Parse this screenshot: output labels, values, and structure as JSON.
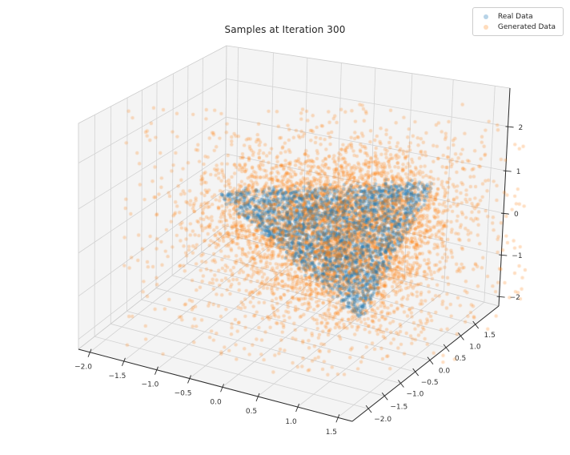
{
  "figure": {
    "title": "Samples at Iteration 300",
    "background_color": "#ffffff"
  },
  "legend": {
    "position": "upper right",
    "entries": [
      {
        "label": "Real Data",
        "series_color": "#1f77b4",
        "marker_color_on_white": "#b7d3e7"
      },
      {
        "label": "Generated Data",
        "series_color": "#ff7f0e",
        "marker_color_on_white": "#ffdcbc"
      }
    ]
  },
  "chart_data": {
    "type": "scatter",
    "projection": "3d",
    "title": "Samples at Iteration 300",
    "grid": true,
    "legend_position": "upper right",
    "axes": {
      "x": {
        "tick_labels": [
          "−2.0",
          "−1.5",
          "−1.0",
          "−0.5",
          "0.0",
          "0.5",
          "1.0",
          "1.5"
        ],
        "ticks": [
          -2.0,
          -1.5,
          -1.0,
          -0.5,
          0.0,
          0.5,
          1.0,
          1.5
        ],
        "range_approx": [
          -2.2,
          1.7
        ],
        "axis_label": ""
      },
      "y": {
        "tick_labels": [
          "−2.0",
          "−1.5",
          "−1.0",
          "−0.5",
          "0.0",
          "0.5",
          "1.0",
          "1.5"
        ],
        "ticks": [
          -2.0,
          -1.5,
          -1.0,
          -0.5,
          0.0,
          0.5,
          1.0,
          1.5
        ],
        "range_approx": [
          -2.2,
          1.7
        ],
        "axis_label": ""
      },
      "z": {
        "tick_labels": [
          "2",
          "1",
          "0",
          "−1",
          "−2"
        ],
        "ticks": [
          2,
          1,
          0,
          -1,
          -2
        ],
        "range_approx": [
          -2.3,
          2.9
        ],
        "axis_label": ""
      }
    },
    "series": [
      {
        "name": "Real Data",
        "color": "#1f77b4",
        "alpha": 0.3,
        "marker": "circle",
        "marker_radius_px": 2.2,
        "n_points_approx": 2600,
        "distribution": "dense uniform scatter filling a planar triangular (simplex-like) region in the middle of the box, roughly spanning x −1..1.3, y −0.5..1.5, z −1..0.8",
        "jitter_sigma": 3
      },
      {
        "name": "Generated Data",
        "color": "#ff7f0e",
        "alpha": 0.26,
        "marker": "circle",
        "marker_radius_px": 2.2,
        "n_points_approx": 5200,
        "distribution": "same triangular core as Real Data but blurred by broad gaussian noise; diffuse halo fills most of the axes box from about −2..1.5 in x and y and −2..2.5 in z",
        "mixture": {
          "tight_fraction": 0.62,
          "tight_sigma": [
            40,
            32
          ],
          "wide_sigma": [
            100,
            74
          ],
          "wide_offset": [
            -12,
            6
          ]
        }
      }
    ],
    "style": {
      "pane_color": "#f4f4f4",
      "pane_edge_color": "#cccccc",
      "grid_color": "#d2d2d2",
      "axis_line_color": "#2b2b2b",
      "tick_label_color": "#343434"
    },
    "random_seed": 42
  }
}
